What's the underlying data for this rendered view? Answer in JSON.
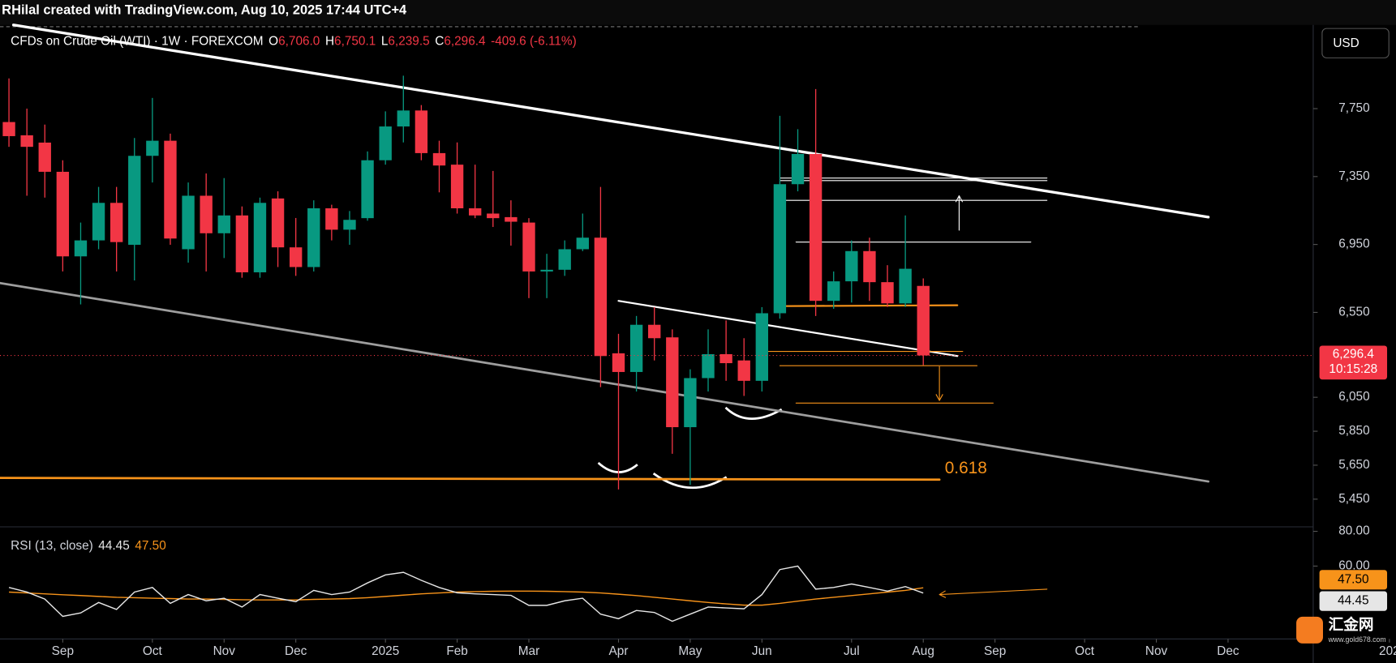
{
  "ui": {
    "attribution": "RHilal created with TradingView.com, Aug 10, 2025 17:44 UTC+4",
    "currency": "USD",
    "watermark": {
      "name": "汇金网",
      "url": "www.gold678.com"
    }
  },
  "chart_data": [
    {
      "type": "candlestick",
      "title": "CFDs on Crude Oil (WTI) · 1W · FOREXCOM",
      "ohlc": [
        {
          "key": "O",
          "value": "6,706.0"
        },
        {
          "key": "H",
          "value": "6,750.1"
        },
        {
          "key": "L",
          "value": "6,239.5"
        },
        {
          "key": "C",
          "value": "6,296.4"
        }
      ],
      "change_label": "-409.6 (-6.11%)",
      "countdown": "10:15:28",
      "up_color": "#089981",
      "down_color": "#f23645",
      "open": [
        7671,
        7593,
        7550,
        7378,
        6880,
        6974,
        7195,
        6948,
        7472,
        7561,
        6922,
        7237,
        7016,
        7121,
        6786,
        7221,
        6933,
        6817,
        7163,
        7037,
        7105,
        7446,
        7645,
        7739,
        7488,
        7420,
        7163,
        7132,
        7111,
        7079,
        6791,
        6801,
        6922,
        6990,
        6309,
        6199,
        6477,
        6403,
        5874,
        6163,
        6304,
        6267,
        6147,
        6545,
        7305,
        7483,
        6618,
        6733,
        6911,
        6728,
        6603,
        6706.0
      ],
      "high": [
        7928,
        7750,
        7656,
        7446,
        7079,
        7289,
        7289,
        7577,
        7813,
        7603,
        7315,
        7368,
        7341,
        7174,
        7226,
        7263,
        7106,
        7210,
        7184,
        7147,
        7498,
        7734,
        7944,
        7771,
        7561,
        7551,
        7420,
        7383,
        7210,
        7105,
        6895,
        6974,
        7132,
        7289,
        6424,
        6529,
        6581,
        6450,
        6215,
        6450,
        6503,
        6398,
        6581,
        7708,
        7629,
        7865,
        6791,
        6974,
        6990,
        6828,
        7121,
        6750.1
      ],
      "low": [
        7525,
        7237,
        7226,
        6791,
        6597,
        6922,
        6791,
        6738,
        7315,
        6948,
        6843,
        6791,
        6870,
        6754,
        6754,
        6817,
        6765,
        6791,
        6974,
        6948,
        7090,
        7420,
        7551,
        7446,
        7257,
        7132,
        7105,
        7053,
        6943,
        6634,
        6634,
        6765,
        6911,
        6110,
        5507,
        6084,
        6267,
        5717,
        5534,
        6084,
        6147,
        6058,
        6084,
        6513,
        7263,
        6529,
        6571,
        6608,
        6618,
        6582,
        6582,
        6239.5
      ],
      "close": [
        7588,
        7525,
        7378,
        6880,
        6974,
        7195,
        6964,
        7472,
        7561,
        6985,
        7237,
        7016,
        7121,
        6786,
        7195,
        6933,
        6817,
        7163,
        7037,
        7095,
        7446,
        7645,
        7739,
        7488,
        7415,
        7163,
        7121,
        7105,
        7084,
        6791,
        6801,
        6922,
        6990,
        6293,
        6199,
        6477,
        6398,
        5874,
        6163,
        6304,
        6251,
        6147,
        6545,
        7305,
        7483,
        6618,
        6733,
        6911,
        6728,
        6603,
        6807,
        6296.4
      ],
      "xlim": [
        -0.5,
        72.75
      ],
      "xticks": [
        {
          "value": 3,
          "label": "Sep"
        },
        {
          "value": 8,
          "label": "Oct"
        },
        {
          "value": 12,
          "label": "Nov"
        },
        {
          "value": 16,
          "label": "Dec"
        },
        {
          "value": 21,
          "label": "2025"
        },
        {
          "value": 25,
          "label": "Feb"
        },
        {
          "value": 29,
          "label": "Mar"
        },
        {
          "value": 34,
          "label": "Apr"
        },
        {
          "value": 38,
          "label": "May"
        },
        {
          "value": 42,
          "label": "Jun"
        },
        {
          "value": 47,
          "label": "Jul"
        },
        {
          "value": 51,
          "label": "Aug"
        },
        {
          "value": 55,
          "label": "Sep"
        },
        {
          "value": 60,
          "label": "Oct"
        },
        {
          "value": 64,
          "label": "Nov"
        },
        {
          "value": 68,
          "label": "Dec"
        },
        {
          "value": 77,
          "label": "202"
        }
      ],
      "ylim": [
        5287,
        8243
      ],
      "yticks": [
        {
          "value": 5450,
          "label": "5,450"
        },
        {
          "value": 5650,
          "label": "5,650"
        },
        {
          "value": 5850,
          "label": "5,850"
        },
        {
          "value": 6050,
          "label": "6,050"
        },
        {
          "value": 6550,
          "label": "6,550"
        },
        {
          "value": 6950,
          "label": "6,950"
        },
        {
          "value": 7350,
          "label": "7,350"
        },
        {
          "value": 7750,
          "label": "7,750"
        }
      ],
      "drawings": [
        {
          "x": [
            0.25,
            66.9
          ],
          "y": [
            8243,
            7111
          ],
          "color": "#ffffff",
          "width": 3
        },
        {
          "x": [
            -0.5,
            66.9
          ],
          "y": [
            6723,
            5554
          ],
          "color": "#9e9e9e",
          "width": 2.5
        },
        {
          "x": [
            34,
            52.9
          ],
          "y": [
            6618,
            6293
          ],
          "color": "#ffffff",
          "width": 2
        },
        {
          "x": [
            -0.5,
            51.9
          ],
          "y": [
            5575,
            5565
          ],
          "color": "#f7931a",
          "width": 2.5,
          "label": "0.618"
        },
        {
          "x": [
            43.1,
            52.9
          ],
          "y": [
            6587,
            6592
          ],
          "color": "#f7931a",
          "width": 2
        },
        {
          "x": [
            43,
            57.9
          ],
          "y": [
            7341,
            7341
          ],
          "color": "#ffffff",
          "width": 1
        },
        {
          "x": [
            43,
            57.9
          ],
          "y": [
            7326,
            7326
          ],
          "color": "#ffffff",
          "width": 1
        },
        {
          "x": [
            43.2,
            57.9
          ],
          "y": [
            7210,
            7210
          ],
          "color": "#ffffff",
          "width": 1
        },
        {
          "x": [
            43.9,
            57
          ],
          "y": [
            6964,
            6964
          ],
          "color": "#ffffff",
          "width": 1
        },
        {
          "x": [
            42.3,
            53.2
          ],
          "y": [
            6320,
            6320
          ],
          "color": "#f7931a",
          "width": 1
        },
        {
          "x": [
            43,
            54
          ],
          "y": [
            6236,
            6236
          ],
          "color": "#f7931a",
          "width": 1
        },
        {
          "x": [
            43.9,
            54.9
          ],
          "y": [
            6016,
            6016
          ],
          "color": "#f7931a",
          "width": 1
        },
        {
          "x": [
            53,
            53
          ],
          "y": [
            7034,
            7237
          ],
          "color": "#ffffff",
          "width": 1,
          "arrow": true
        },
        {
          "x": [
            51.9,
            51.9
          ],
          "y": [
            6231,
            6031
          ],
          "color": "#f7931a",
          "width": 1,
          "arrow": true
        }
      ]
    },
    {
      "type": "line",
      "title": "RSI (13, close)",
      "series": [
        {
          "color": "#e6e6e6",
          "value_label": "44.45",
          "values": [
            47.7,
            45,
            41,
            31,
            33,
            39,
            35,
            45,
            47.7,
            38.5,
            43.6,
            40,
            41.5,
            36.4,
            43.6,
            41.5,
            39.5,
            46,
            43.6,
            45,
            50.3,
            54.9,
            56.4,
            51.8,
            47.7,
            44.6,
            44,
            43.6,
            43.1,
            37.4,
            37.4,
            40,
            41.5,
            32.3,
            29.7,
            34.4,
            33.3,
            28.2,
            32.3,
            36.4,
            35.9,
            35.4,
            43.6,
            58,
            60,
            46.7,
            47.7,
            49.7,
            47.7,
            45.6,
            48.2,
            44.45
          ]
        },
        {
          "color": "#f7931a",
          "value_label": "47.50",
          "values": [
            45,
            44.5,
            44,
            43.5,
            43,
            42.5,
            42,
            41.8,
            41.5,
            41.3,
            41,
            41,
            40.8,
            40.6,
            40.5,
            40.5,
            40.5,
            40.8,
            41,
            41.3,
            41.8,
            42.5,
            43.3,
            44,
            44.5,
            45,
            45.3,
            45.5,
            45.6,
            45.6,
            45.5,
            45.3,
            45,
            44.5,
            43.8,
            43,
            42,
            41,
            40,
            39,
            38.2,
            37.5,
            37.5,
            38.5,
            39.8,
            41,
            42,
            43,
            44,
            45,
            46,
            47.5
          ]
        }
      ],
      "xlim": [
        -0.5,
        72.75
      ],
      "ylim": [
        18,
        82.6
      ],
      "yticks": [
        {
          "value": 80,
          "label": "80.00"
        },
        {
          "value": 60,
          "label": "60.00"
        }
      ],
      "drawings": [
        {
          "x": [
            57.9,
            51.9
          ],
          "y": [
            46.7,
            43.6
          ],
          "color": "#f7931a",
          "width": 1,
          "arrow": true
        }
      ]
    }
  ]
}
